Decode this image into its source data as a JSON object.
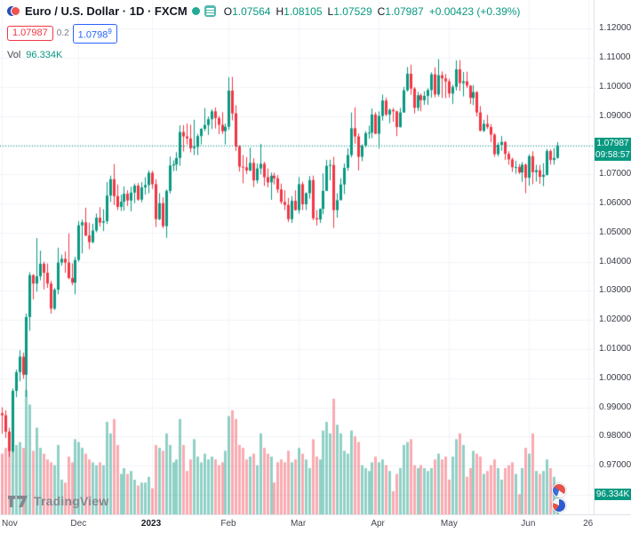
{
  "header": {
    "symbol_line": "Euro / U.S. Dollar · 1D · FXCM",
    "ohlc": {
      "o_label": "O",
      "o": "1.07564",
      "h_label": "H",
      "h": "1.08105",
      "l_label": "L",
      "l": "1.07529",
      "c_label": "C",
      "c": "1.07987",
      "change": "+0.00423 (+0.39%)"
    },
    "bid": "1.07987",
    "spread": "0.2",
    "ask_base": "1.0798",
    "ask_sup": "9",
    "vol_label": "Vol",
    "vol_value": "96.334K"
  },
  "axis": {
    "price_badge": {
      "price": "1.07987",
      "countdown": "09:58:57"
    },
    "volume_badge": "96.334K"
  },
  "footer": {
    "logo_text": "TradingView"
  },
  "colors": {
    "up": "#089981",
    "down": "#f23645",
    "vol_up": "rgba(8,153,129,0.45)",
    "vol_down": "rgba(242,54,69,0.42)",
    "grid": "#f0f3fa",
    "axis_text": "#363a45",
    "bid": "#f23645",
    "ask": "#2962ff",
    "badge_bg": "#089981"
  },
  "chart_data": {
    "type": "candlestick",
    "title": "Euro / U.S. Dollar, 1D, FXCM",
    "legend_position": "top-left",
    "grid": true,
    "current_price": 1.07987,
    "y_axis": {
      "min": 0.9533,
      "max": 1.1298,
      "ticks": [
        "1.12000",
        "1.11000",
        "1.10000",
        "1.09000",
        "1.08000",
        "1.07000",
        "1.06000",
        "1.05000",
        "1.04000",
        "1.03000",
        "1.02000",
        "1.01000",
        "1.00000",
        "0.99000",
        "0.98000",
        "0.97000",
        "0.96000"
      ]
    },
    "x_axis": {
      "total_slots": 170,
      "ticks": [
        {
          "label": "Nov",
          "index": 0
        },
        {
          "label": "Dec",
          "index": 22
        },
        {
          "label": "2023",
          "index": 43,
          "bold": true
        },
        {
          "label": "Feb",
          "index": 65
        },
        {
          "label": "Mar",
          "index": 85
        },
        {
          "label": "Apr",
          "index": 108
        },
        {
          "label": "May",
          "index": 128
        },
        {
          "label": "Jun",
          "index": 151
        },
        {
          "label": "26",
          "index": 168
        }
      ]
    },
    "vol_axis_max_k": 1780,
    "candles_format": [
      "open",
      "high",
      "low",
      "close",
      "volume_k"
    ],
    "candles": [
      [
        0.988,
        0.99,
        0.981,
        0.9873,
        210
      ],
      [
        0.9873,
        0.989,
        0.9795,
        0.9817,
        230
      ],
      [
        0.9817,
        0.983,
        0.973,
        0.975,
        260
      ],
      [
        0.975,
        0.9965,
        0.9745,
        0.9957,
        320
      ],
      [
        0.9957,
        1.003,
        0.9935,
        1.0021,
        240
      ],
      [
        1.0021,
        1.0096,
        0.999,
        1.0074,
        250
      ],
      [
        1.0074,
        1.0088,
        0.9998,
        1.0012,
        230
      ],
      [
        1.0012,
        1.0222,
        0.9936,
        1.021,
        430
      ],
      [
        1.021,
        1.0364,
        1.0163,
        1.0354,
        380
      ],
      [
        1.0354,
        1.0357,
        1.0271,
        1.0325,
        220
      ],
      [
        1.0325,
        1.0481,
        1.0297,
        1.035,
        300
      ],
      [
        1.035,
        1.0438,
        1.0336,
        1.0393,
        230
      ],
      [
        1.0393,
        1.04,
        1.0305,
        1.0362,
        210
      ],
      [
        1.0362,
        1.0394,
        1.031,
        1.0325,
        190
      ],
      [
        1.0325,
        1.0334,
        1.0222,
        1.0239,
        180
      ],
      [
        1.0239,
        1.031,
        1.0234,
        1.0304,
        170
      ],
      [
        1.0304,
        1.0448,
        1.0288,
        1.0397,
        240
      ],
      [
        1.0397,
        1.0424,
        1.0386,
        1.041,
        120
      ],
      [
        1.041,
        1.0435,
        1.0362,
        1.0397,
        110
      ],
      [
        1.0397,
        1.0497,
        1.034,
        1.0344,
        200
      ],
      [
        1.0344,
        1.0394,
        1.0319,
        1.0328,
        180
      ],
      [
        1.0328,
        1.0417,
        1.0288,
        1.0406,
        260
      ],
      [
        1.0406,
        1.0539,
        1.04,
        1.0525,
        250
      ],
      [
        1.0525,
        1.0545,
        1.0428,
        1.0535,
        230
      ],
      [
        1.0535,
        1.0585,
        1.0487,
        1.049,
        210
      ],
      [
        1.049,
        1.0534,
        1.0443,
        1.0467,
        190
      ],
      [
        1.0467,
        1.053,
        1.0463,
        1.0507,
        180
      ],
      [
        1.0507,
        1.0565,
        1.0501,
        1.0551,
        170
      ],
      [
        1.0551,
        1.0587,
        1.052,
        1.0534,
        180
      ],
      [
        1.0534,
        1.058,
        1.0505,
        1.0539,
        170
      ],
      [
        1.0539,
        1.0673,
        1.0529,
        1.0627,
        320
      ],
      [
        1.0627,
        1.0695,
        1.0605,
        1.0683,
        280
      ],
      [
        1.0683,
        1.0735,
        1.0594,
        1.0625,
        330
      ],
      [
        1.0625,
        1.0665,
        1.0577,
        1.0588,
        240
      ],
      [
        1.0588,
        1.063,
        1.0574,
        1.0606,
        140
      ],
      [
        1.0606,
        1.0658,
        1.0575,
        1.0633,
        160
      ],
      [
        1.0633,
        1.0645,
        1.0591,
        1.061,
        140
      ],
      [
        1.061,
        1.0657,
        1.0573,
        1.0637,
        150
      ],
      [
        1.0637,
        1.0668,
        1.0601,
        1.0661,
        120
      ],
      [
        1.0661,
        1.067,
        1.0609,
        1.0613,
        100
      ],
      [
        1.0613,
        1.0673,
        1.0604,
        1.0655,
        110
      ],
      [
        1.0655,
        1.069,
        1.063,
        1.0663,
        110
      ],
      [
        1.0663,
        1.0713,
        1.0635,
        1.0705,
        130
      ],
      [
        1.0705,
        1.0712,
        1.065,
        1.0666,
        90
      ],
      [
        1.0666,
        1.0683,
        1.0519,
        1.0546,
        240
      ],
      [
        1.0546,
        1.0635,
        1.0542,
        1.0601,
        230
      ],
      [
        1.0601,
        1.0621,
        1.0515,
        1.0522,
        220
      ],
      [
        1.0522,
        1.0648,
        1.0482,
        1.0643,
        280
      ],
      [
        1.0643,
        1.0761,
        1.0634,
        1.073,
        240
      ],
      [
        1.073,
        1.0748,
        1.0711,
        1.0734,
        180
      ],
      [
        1.0734,
        1.0776,
        1.0712,
        1.0756,
        190
      ],
      [
        1.0756,
        1.0868,
        1.0729,
        1.0845,
        330
      ],
      [
        1.0845,
        1.0869,
        1.0778,
        1.083,
        240
      ],
      [
        1.083,
        1.0874,
        1.0802,
        1.0823,
        150
      ],
      [
        1.0823,
        1.087,
        1.0775,
        1.0789,
        190
      ],
      [
        1.0789,
        1.0887,
        1.0766,
        1.0794,
        260
      ],
      [
        1.0794,
        1.0838,
        1.0766,
        1.0831,
        200
      ],
      [
        1.0831,
        1.0858,
        1.0802,
        1.0856,
        180
      ],
      [
        1.0856,
        1.0927,
        1.0848,
        1.0869,
        210
      ],
      [
        1.0869,
        1.0898,
        1.0835,
        1.0889,
        190
      ],
      [
        1.0889,
        1.0923,
        1.0855,
        1.0916,
        200
      ],
      [
        1.0916,
        1.0929,
        1.0857,
        1.0893,
        190
      ],
      [
        1.0893,
        1.09,
        1.0838,
        1.087,
        170
      ],
      [
        1.087,
        1.0913,
        1.0838,
        1.0848,
        180
      ],
      [
        1.0848,
        1.0874,
        1.0802,
        1.0863,
        220
      ],
      [
        1.0863,
        1.1033,
        1.0852,
        1.0987,
        340
      ],
      [
        1.0987,
        1.1034,
        1.0885,
        1.0909,
        360
      ],
      [
        1.0909,
        1.0937,
        1.078,
        1.0795,
        330
      ],
      [
        1.0795,
        1.08,
        1.0709,
        1.0726,
        240
      ],
      [
        1.0726,
        1.0766,
        1.0669,
        1.0724,
        230
      ],
      [
        1.0724,
        1.0759,
        1.0701,
        1.0713,
        190
      ],
      [
        1.0713,
        1.0791,
        1.071,
        1.0739,
        200
      ],
      [
        1.0739,
        1.0755,
        1.0656,
        1.0679,
        210
      ],
      [
        1.0679,
        1.0737,
        1.0668,
        1.072,
        170
      ],
      [
        1.072,
        1.0804,
        1.0699,
        1.0736,
        280
      ],
      [
        1.0736,
        1.0743,
        1.066,
        1.069,
        230
      ],
      [
        1.069,
        1.072,
        1.0655,
        1.0672,
        210
      ],
      [
        1.0672,
        1.0706,
        1.0612,
        1.0695,
        200
      ],
      [
        1.0695,
        1.0705,
        1.0665,
        1.0686,
        110
      ],
      [
        1.0686,
        1.0697,
        1.0636,
        1.0648,
        180
      ],
      [
        1.0648,
        1.0668,
        1.0598,
        1.0605,
        190
      ],
      [
        1.0605,
        1.0645,
        1.0577,
        1.0595,
        180
      ],
      [
        1.0595,
        1.0619,
        1.0536,
        1.0546,
        220
      ],
      [
        1.0546,
        1.0625,
        1.0533,
        1.0609,
        180
      ],
      [
        1.0609,
        1.0645,
        1.0575,
        1.0577,
        190
      ],
      [
        1.0577,
        1.0691,
        1.0565,
        1.0666,
        230
      ],
      [
        1.0666,
        1.0674,
        1.0577,
        1.0597,
        210
      ],
      [
        1.0597,
        1.0638,
        1.0577,
        1.0635,
        190
      ],
      [
        1.0635,
        1.0694,
        1.0616,
        1.068,
        160
      ],
      [
        1.068,
        1.0695,
        1.0542,
        1.0549,
        260
      ],
      [
        1.0549,
        1.0577,
        1.0524,
        1.0545,
        200
      ],
      [
        1.0545,
        1.0583,
        1.0533,
        1.0581,
        190
      ],
      [
        1.0581,
        1.0703,
        1.0563,
        1.0643,
        290
      ],
      [
        1.0643,
        1.0749,
        1.0643,
        1.0729,
        320
      ],
      [
        1.0729,
        1.075,
        1.0679,
        1.0732,
        280
      ],
      [
        1.0732,
        1.076,
        1.0516,
        1.0577,
        400
      ],
      [
        1.0577,
        1.0635,
        1.0551,
        1.0611,
        310
      ],
      [
        1.0611,
        1.0686,
        1.0611,
        1.0665,
        280
      ],
      [
        1.0665,
        1.0737,
        1.0632,
        1.0722,
        220
      ],
      [
        1.0722,
        1.0789,
        1.0712,
        1.0766,
        210
      ],
      [
        1.0766,
        1.0912,
        1.0758,
        1.0858,
        290
      ],
      [
        1.0858,
        1.093,
        1.0805,
        1.083,
        270
      ],
      [
        1.083,
        1.084,
        1.0713,
        1.076,
        250
      ],
      [
        1.076,
        1.0803,
        1.0745,
        1.0798,
        170
      ],
      [
        1.0798,
        1.0848,
        1.0792,
        1.0841,
        160
      ],
      [
        1.0841,
        1.0867,
        1.0822,
        1.0843,
        150
      ],
      [
        1.0843,
        1.0926,
        1.0824,
        1.0905,
        180
      ],
      [
        1.0905,
        1.0913,
        1.0838,
        1.0839,
        200
      ],
      [
        1.0839,
        1.0916,
        1.0788,
        1.09,
        180
      ],
      [
        1.09,
        1.0973,
        1.0884,
        1.0953,
        190
      ],
      [
        1.0953,
        1.0963,
        1.0899,
        1.0905,
        170
      ],
      [
        1.0905,
        1.0926,
        1.0875,
        1.0921,
        150
      ],
      [
        1.0921,
        1.0928,
        1.088,
        1.0916,
        80
      ],
      [
        1.0916,
        1.0918,
        1.0831,
        1.0862,
        140
      ],
      [
        1.0862,
        1.0928,
        1.086,
        1.0912,
        160
      ],
      [
        1.0912,
        1.1,
        1.0911,
        1.0988,
        240
      ],
      [
        1.0988,
        1.1068,
        1.0984,
        1.1045,
        250
      ],
      [
        1.1045,
        1.1076,
        1.0973,
        1.0994,
        260
      ],
      [
        1.0994,
        1.0999,
        1.0909,
        1.0928,
        170
      ],
      [
        1.0928,
        1.0983,
        1.0917,
        1.0971,
        160
      ],
      [
        1.0971,
        1.0977,
        1.0916,
        1.0954,
        170
      ],
      [
        1.0954,
        1.0985,
        1.0938,
        1.0969,
        160
      ],
      [
        1.0969,
        1.0995,
        1.0938,
        1.0989,
        150
      ],
      [
        1.0989,
        1.105,
        1.0963,
        1.1043,
        160
      ],
      [
        1.1043,
        1.1067,
        1.0964,
        1.0974,
        190
      ],
      [
        1.0974,
        1.1095,
        1.0966,
        1.104,
        210
      ],
      [
        1.104,
        1.1053,
        1.0962,
        1.1029,
        190
      ],
      [
        1.1029,
        1.1044,
        1.0961,
        1.1019,
        200
      ],
      [
        1.1019,
        1.1028,
        1.0963,
        1.0977,
        120
      ],
      [
        1.0977,
        1.1007,
        1.0941,
        1.1,
        200
      ],
      [
        1.1,
        1.1091,
        1.0987,
        1.106,
        260
      ],
      [
        1.106,
        1.1092,
        1.0986,
        1.1013,
        280
      ],
      [
        1.1013,
        1.1051,
        1.0967,
        1.1019,
        240
      ],
      [
        1.1019,
        1.1052,
        1.0996,
        1.1004,
        130
      ],
      [
        1.1004,
        1.1006,
        1.0941,
        1.0962,
        160
      ],
      [
        1.0962,
        1.1006,
        1.0937,
        1.0982,
        220
      ],
      [
        1.0982,
        1.0985,
        1.0899,
        1.0912,
        210
      ],
      [
        1.0912,
        1.0934,
        1.0848,
        1.0849,
        200
      ],
      [
        1.0849,
        1.0887,
        1.0845,
        1.0873,
        140
      ],
      [
        1.0873,
        1.0904,
        1.0855,
        1.0862,
        150
      ],
      [
        1.0862,
        1.0872,
        1.081,
        1.0836,
        170
      ],
      [
        1.0836,
        1.0841,
        1.076,
        1.0769,
        190
      ],
      [
        1.0769,
        1.0809,
        1.0761,
        1.0801,
        160
      ],
      [
        1.0801,
        1.0831,
        1.0781,
        1.0811,
        120
      ],
      [
        1.0811,
        1.0814,
        1.0749,
        1.077,
        160
      ],
      [
        1.077,
        1.0779,
        1.0733,
        1.0751,
        170
      ],
      [
        1.0751,
        1.0757,
        1.0708,
        1.0724,
        180
      ],
      [
        1.0724,
        1.0746,
        1.0702,
        1.0725,
        140
      ],
      [
        1.0725,
        1.0735,
        1.0701,
        1.0706,
        70
      ],
      [
        1.0706,
        1.0742,
        1.0674,
        1.0733,
        160
      ],
      [
        1.0733,
        1.0737,
        1.0635,
        1.0688,
        230
      ],
      [
        1.0688,
        1.0768,
        1.0661,
        1.0762,
        210
      ],
      [
        1.0762,
        1.0779,
        1.0666,
        1.0707,
        280
      ],
      [
        1.0707,
        1.0733,
        1.0675,
        1.0714,
        150
      ],
      [
        1.0714,
        1.0732,
        1.0667,
        1.0691,
        140
      ],
      [
        1.0691,
        1.0738,
        1.0659,
        1.0698,
        150
      ],
      [
        1.0698,
        1.0787,
        1.0695,
        1.078,
        190
      ],
      [
        1.078,
        1.0785,
        1.0733,
        1.0749,
        160
      ],
      [
        1.0749,
        1.079,
        1.0733,
        1.0756,
        130
      ],
      [
        1.07564,
        1.08105,
        1.07529,
        1.07987,
        96.334
      ]
    ]
  }
}
